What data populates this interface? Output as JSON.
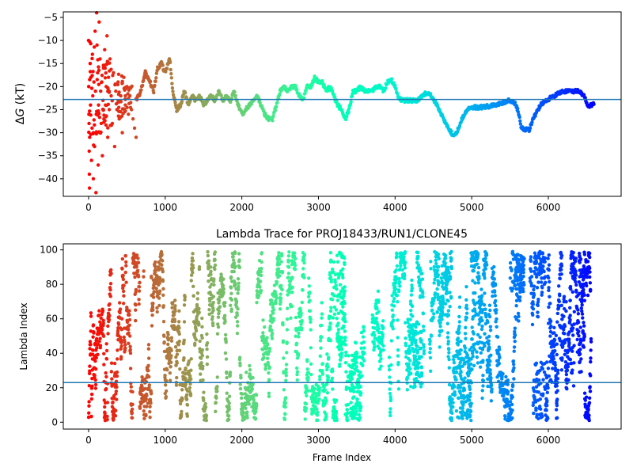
{
  "figure": {
    "background": "#ffffff",
    "colormap": "rainbow"
  },
  "chart_data": [
    {
      "type": "scatter",
      "id": "free-energy",
      "title": "",
      "xlabel": "",
      "ylabel_parts": [
        "Δ",
        "G",
        " (kT)"
      ],
      "xlim": [
        -330,
        6950
      ],
      "ylim": [
        -43.8,
        -3.8
      ],
      "xticks": [
        0,
        1000,
        2000,
        3000,
        4000,
        5000,
        6000
      ],
      "yticks": [
        -40,
        -35,
        -30,
        -25,
        -20,
        -15,
        -10,
        -5
      ],
      "reference_line": {
        "y": -22.8,
        "color": "#1f77b4"
      },
      "frame_range": [
        0,
        6600
      ],
      "early_points": [
        [
          0,
          -10
        ],
        [
          2,
          -20
        ],
        [
          4,
          -26
        ],
        [
          6,
          -28
        ],
        [
          8,
          -34
        ],
        [
          10,
          -39
        ],
        [
          12,
          -42
        ],
        [
          14,
          -31
        ],
        [
          20,
          -15
        ],
        [
          25,
          -24
        ],
        [
          30,
          -18
        ],
        [
          38,
          -36
        ],
        [
          45,
          -29
        ],
        [
          50,
          -13
        ],
        [
          55,
          -22
        ],
        [
          62,
          -40
        ],
        [
          70,
          -19
        ],
        [
          78,
          -33
        ],
        [
          85,
          -8
        ],
        [
          90,
          -21
        ],
        [
          96,
          -43
        ],
        [
          100,
          -26
        ],
        [
          105,
          -4
        ],
        [
          110,
          -11
        ],
        [
          118,
          -17
        ],
        [
          125,
          -37
        ],
        [
          130,
          -24
        ],
        [
          138,
          -6
        ],
        [
          145,
          -30
        ],
        [
          150,
          -14
        ],
        [
          158,
          -21
        ],
        [
          165,
          -28
        ],
        [
          172,
          -19
        ],
        [
          180,
          -35
        ],
        [
          188,
          -23
        ],
        [
          195,
          -16
        ],
        [
          200,
          -27
        ],
        [
          210,
          -12
        ],
        [
          220,
          -24
        ],
        [
          230,
          -20
        ],
        [
          240,
          -9
        ],
        [
          250,
          -31
        ],
        [
          260,
          -18
        ],
        [
          270,
          -25
        ],
        [
          280,
          -14
        ],
        [
          295,
          -22
        ],
        [
          310,
          -28
        ],
        [
          325,
          -17
        ],
        [
          340,
          -33
        ],
        [
          355,
          -21
        ],
        [
          370,
          -25
        ],
        [
          385,
          -19
        ],
        [
          400,
          -27
        ],
        [
          420,
          -22
        ],
        [
          440,
          -30
        ],
        [
          460,
          -18
        ],
        [
          480,
          -24
        ],
        [
          500,
          -20
        ],
        [
          520,
          -26
        ],
        [
          540,
          -22
        ],
        [
          560,
          -25
        ],
        [
          580,
          -27
        ],
        [
          600,
          -29
        ],
        [
          620,
          -31
        ]
      ],
      "trace_knots": [
        [
          620,
          -23
        ],
        [
          680,
          -21
        ],
        [
          740,
          -17
        ],
        [
          800,
          -19
        ],
        [
          850,
          -21
        ],
        [
          900,
          -16
        ],
        [
          950,
          -15
        ],
        [
          1000,
          -17
        ],
        [
          1060,
          -14
        ],
        [
          1100,
          -21
        ],
        [
          1150,
          -25
        ],
        [
          1200,
          -24
        ],
        [
          1250,
          -21
        ],
        [
          1300,
          -24
        ],
        [
          1350,
          -22
        ],
        [
          1400,
          -23
        ],
        [
          1450,
          -22
        ],
        [
          1500,
          -24
        ],
        [
          1550,
          -23
        ],
        [
          1600,
          -22
        ],
        [
          1650,
          -23
        ],
        [
          1700,
          -21
        ],
        [
          1750,
          -23
        ],
        [
          1800,
          -22
        ],
        [
          1850,
          -23
        ],
        [
          1900,
          -21
        ],
        [
          1950,
          -24
        ],
        [
          2000,
          -26
        ],
        [
          2050,
          -25
        ],
        [
          2100,
          -24
        ],
        [
          2150,
          -23
        ],
        [
          2200,
          -22
        ],
        [
          2250,
          -24
        ],
        [
          2300,
          -26
        ],
        [
          2350,
          -27
        ],
        [
          2400,
          -27
        ],
        [
          2450,
          -24
        ],
        [
          2500,
          -21
        ],
        [
          2550,
          -20
        ],
        [
          2600,
          -21
        ],
        [
          2650,
          -20
        ],
        [
          2700,
          -20
        ],
        [
          2750,
          -22
        ],
        [
          2800,
          -23
        ],
        [
          2850,
          -20
        ],
        [
          2900,
          -20
        ],
        [
          2950,
          -18
        ],
        [
          3000,
          -19
        ],
        [
          3050,
          -19
        ],
        [
          3100,
          -21
        ],
        [
          3150,
          -20
        ],
        [
          3200,
          -22
        ],
        [
          3250,
          -24
        ],
        [
          3300,
          -25
        ],
        [
          3350,
          -27
        ],
        [
          3400,
          -25
        ],
        [
          3450,
          -21
        ],
        [
          3500,
          -21
        ],
        [
          3550,
          -20
        ],
        [
          3600,
          -21
        ],
        [
          3650,
          -21
        ],
        [
          3700,
          -21
        ],
        [
          3750,
          -20
        ],
        [
          3800,
          -20
        ],
        [
          3850,
          -21
        ],
        [
          3900,
          -19
        ],
        [
          3950,
          -18.5
        ],
        [
          4000,
          -20
        ],
        [
          4050,
          -22.5
        ],
        [
          4100,
          -23
        ],
        [
          4150,
          -23
        ],
        [
          4200,
          -23
        ],
        [
          4250,
          -23
        ],
        [
          4300,
          -23
        ],
        [
          4350,
          -22
        ],
        [
          4400,
          -21.5
        ],
        [
          4450,
          -21.5
        ],
        [
          4500,
          -23
        ],
        [
          4550,
          -24
        ],
        [
          4600,
          -26
        ],
        [
          4650,
          -27.5
        ],
        [
          4700,
          -29
        ],
        [
          4760,
          -30.8
        ],
        [
          4800,
          -30
        ],
        [
          4850,
          -28
        ],
        [
          4900,
          -26
        ],
        [
          4950,
          -25
        ],
        [
          5000,
          -24.5
        ],
        [
          5100,
          -24.5
        ],
        [
          5200,
          -24.3
        ],
        [
          5300,
          -24.1
        ],
        [
          5400,
          -23.5
        ],
        [
          5450,
          -23.2
        ],
        [
          5500,
          -23
        ],
        [
          5560,
          -23.5
        ],
        [
          5600,
          -25
        ],
        [
          5650,
          -29
        ],
        [
          5700,
          -29.3
        ],
        [
          5750,
          -29.3
        ],
        [
          5800,
          -27
        ],
        [
          5850,
          -25.5
        ],
        [
          5900,
          -24
        ],
        [
          5950,
          -23.5
        ],
        [
          6000,
          -22.8
        ],
        [
          6050,
          -22.2
        ],
        [
          6100,
          -21.8
        ],
        [
          6200,
          -21
        ],
        [
          6300,
          -21
        ],
        [
          6400,
          -21
        ],
        [
          6470,
          -22
        ],
        [
          6520,
          -24.5
        ],
        [
          6560,
          -24
        ],
        [
          6600,
          -23.5
        ]
      ]
    },
    {
      "type": "scatter",
      "id": "lambda-trace",
      "title": "Lambda Trace for PROJ18433/RUN1/CLONE45",
      "xlabel": "Frame Index",
      "ylabel": "Lambda Index",
      "xlim": [
        -330,
        6950
      ],
      "ylim": [
        -4,
        103.5
      ],
      "xticks": [
        0,
        1000,
        2000,
        3000,
        4000,
        5000,
        6000
      ],
      "yticks": [
        0,
        20,
        40,
        60,
        80,
        100
      ],
      "reference_line": {
        "y": 23,
        "color": "#1f77b4"
      },
      "lambda_min": 1,
      "lambda_max": 99,
      "frame_range": [
        0,
        6600
      ],
      "dense_regions": [
        [
          3150,
          3350,
          60,
          99
        ],
        [
          3350,
          3550,
          1,
          40
        ],
        [
          4150,
          4350,
          20,
          60
        ],
        [
          4550,
          4750,
          60,
          99
        ],
        [
          4800,
          5000,
          1,
          45
        ],
        [
          5000,
          5250,
          30,
          70
        ],
        [
          5500,
          5700,
          75,
          99
        ],
        [
          5800,
          6000,
          1,
          35
        ],
        [
          6000,
          6350,
          20,
          70
        ],
        [
          6400,
          6550,
          70,
          99
        ]
      ],
      "gaps": [
        [
          3380,
          3420
        ],
        [
          3600,
          3700
        ],
        [
          3850,
          3920
        ],
        [
          4380,
          4450
        ],
        [
          5680,
          5760
        ],
        [
          6560,
          6600
        ]
      ]
    }
  ]
}
